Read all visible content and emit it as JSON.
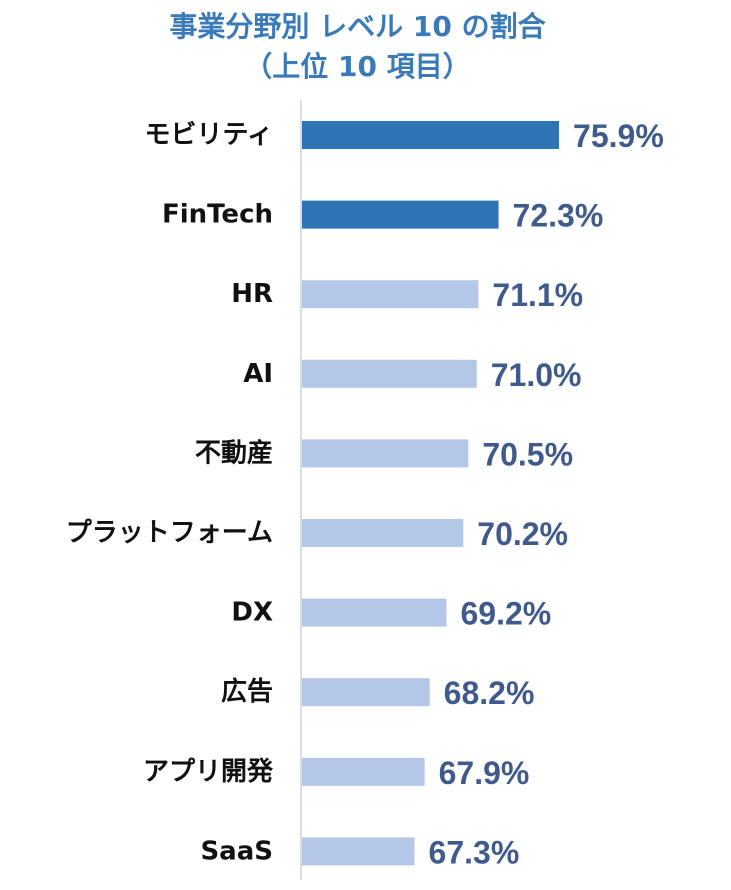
{
  "chart_data": {
    "type": "bar",
    "orientation": "horizontal",
    "title": "事業分野別 レベル 10 の割合",
    "subtitle": "（上位 10 項目）",
    "categories": [
      "モビリティ",
      "FinTech",
      "HR",
      "AI",
      "不動産",
      "プラットフォーム",
      "DX",
      "広告",
      "アプリ開発",
      "SaaS"
    ],
    "values": [
      75.9,
      72.3,
      71.1,
      71.0,
      70.5,
      70.2,
      69.2,
      68.2,
      67.9,
      67.3
    ],
    "value_labels": [
      "75.9%",
      "72.3%",
      "71.1%",
      "71.0%",
      "70.5%",
      "70.2%",
      "69.2%",
      "68.2%",
      "67.9%",
      "67.3%"
    ],
    "highlighted": [
      true,
      true,
      false,
      false,
      false,
      false,
      false,
      false,
      false,
      false
    ],
    "colors": {
      "highlight": "#2e75b6",
      "normal": "#b4c7e7",
      "title": "#3a7ab8",
      "value_label": "#3f5a8c",
      "axis": "#d0d0d0"
    },
    "grid": false,
    "legend": "none"
  }
}
